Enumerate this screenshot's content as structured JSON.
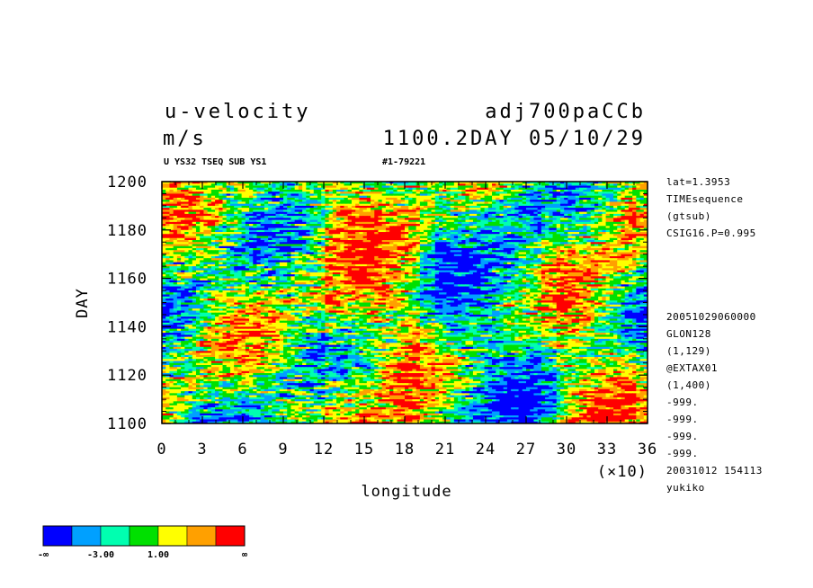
{
  "header": {
    "variable": "u-velocity",
    "experiment": "adj700paCCb",
    "units": "m/s",
    "time_label": "1100.2DAY 05/10/29",
    "subtitle_left": "U YS32 TSEQ SUB YS1",
    "subtitle_right": "#1-79221"
  },
  "side_info": {
    "top": [
      "lat=1.3953",
      "TIMEsequence",
      "(gtsub)",
      "CSIG16.P=0.995"
    ],
    "bottom": [
      "20051029060000",
      "GLON128",
      "(1,129)",
      "@EXTAX01",
      "(1,400)",
      "-999.",
      "-999.",
      "-999.",
      "-999.",
      "20031012 154113",
      "yukiko"
    ]
  },
  "colors": {
    "palette": [
      "#0000ff",
      "#00a0ff",
      "#00ffb0",
      "#00e000",
      "#ffff00",
      "#ffa000",
      "#ff0000"
    ]
  },
  "colorbar": {
    "labels": [
      "-∞",
      "-3.00",
      "1.00",
      "∞"
    ]
  },
  "chart_data": {
    "type": "heatmap",
    "title": "u-velocity",
    "xlabel": "longitude",
    "x_multiplier": "(×10)",
    "ylabel": "DAY",
    "x_ticks": [
      "0",
      "3",
      "6",
      "9",
      "12",
      "15",
      "18",
      "21",
      "24",
      "27",
      "30",
      "33",
      "36"
    ],
    "y_ticks": [
      "1100",
      "1120",
      "1140",
      "1160",
      "1180",
      "1200"
    ],
    "xlim": [
      0,
      36
    ],
    "ylim": [
      1100,
      1200
    ],
    "units": "m/s",
    "color_levels": [
      "-∞",
      "-3.00",
      "1.00",
      "∞"
    ],
    "value_range": [
      -8,
      8
    ]
  }
}
